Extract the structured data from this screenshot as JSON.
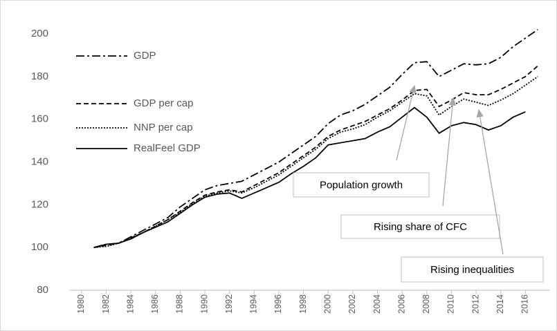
{
  "chart_data": {
    "type": "line",
    "x": [
      1981,
      1982,
      1983,
      1984,
      1985,
      1986,
      1987,
      1988,
      1989,
      1990,
      1991,
      1992,
      1993,
      1994,
      1995,
      1996,
      1997,
      1998,
      1999,
      2000,
      2001,
      2002,
      2003,
      2004,
      2005,
      2006,
      2007,
      2008,
      2009,
      2010,
      2011,
      2012,
      2013,
      2014,
      2015,
      2016,
      2017
    ],
    "series": [
      {
        "name": "GDP",
        "color": "#000000",
        "linestyle": "dashdot",
        "values": [
          100,
          101.5,
          102,
          105,
          108,
          111,
          114,
          119,
          123,
          127,
          129,
          130,
          131,
          134,
          137,
          140,
          144,
          148,
          152,
          158,
          162,
          164,
          167,
          171,
          175,
          181,
          186.5,
          187,
          180,
          183,
          186,
          185.5,
          186,
          189,
          194,
          198,
          202
        ]
      },
      {
        "name": "GDP per cap",
        "color": "#000000",
        "linestyle": "dashed",
        "values": [
          100,
          101,
          102,
          104.5,
          107,
          110,
          113,
          117,
          121,
          124.5,
          126,
          127,
          126,
          129,
          132,
          135,
          139,
          143,
          147,
          152,
          155,
          157,
          159,
          162,
          165,
          169,
          173.5,
          174,
          166,
          169,
          172.5,
          171.5,
          171.5,
          174,
          177,
          180,
          185
        ]
      },
      {
        "name": "NNP per cap",
        "color": "#000000",
        "linestyle": "dotted",
        "values": [
          100,
          100.5,
          102,
          104.5,
          107,
          110,
          113,
          116.5,
          120.5,
          124,
          125.5,
          126.5,
          125.5,
          128,
          131,
          134,
          138,
          142,
          146,
          151,
          154,
          155.5,
          157.5,
          161,
          164,
          168,
          172,
          171,
          162,
          166,
          169.5,
          168,
          166.5,
          169,
          172,
          176,
          180
        ]
      },
      {
        "name": "RealFeel GDP",
        "color": "#000000",
        "linestyle": "solid",
        "values": [
          100,
          101.5,
          102,
          104,
          107,
          109.5,
          112,
          116,
          120,
          123.5,
          125,
          125.5,
          123,
          125.5,
          128,
          130.5,
          134.5,
          138,
          142,
          148,
          149,
          150,
          151,
          154,
          156.5,
          161,
          165.5,
          161,
          153.5,
          157,
          158.5,
          157.5,
          155,
          157,
          161,
          163.5,
          null
        ]
      }
    ],
    "xlim": [
      1979,
      2018
    ],
    "xticks": [
      1980,
      1982,
      1984,
      1986,
      1988,
      1990,
      1992,
      1994,
      1996,
      1998,
      2000,
      2002,
      2004,
      2006,
      2008,
      2010,
      2012,
      2014,
      2016
    ],
    "ylim": [
      80,
      200
    ],
    "yticks": [
      80,
      100,
      120,
      140,
      160,
      180,
      200
    ],
    "legend": "upper left",
    "annotations": [
      {
        "text": "Population growth",
        "color": "#a6a6a6"
      },
      {
        "text": "Rising share of CFC",
        "color": "#a6a6a6"
      },
      {
        "text": "Rising inequalities",
        "color": "#a6a6a6"
      }
    ]
  }
}
